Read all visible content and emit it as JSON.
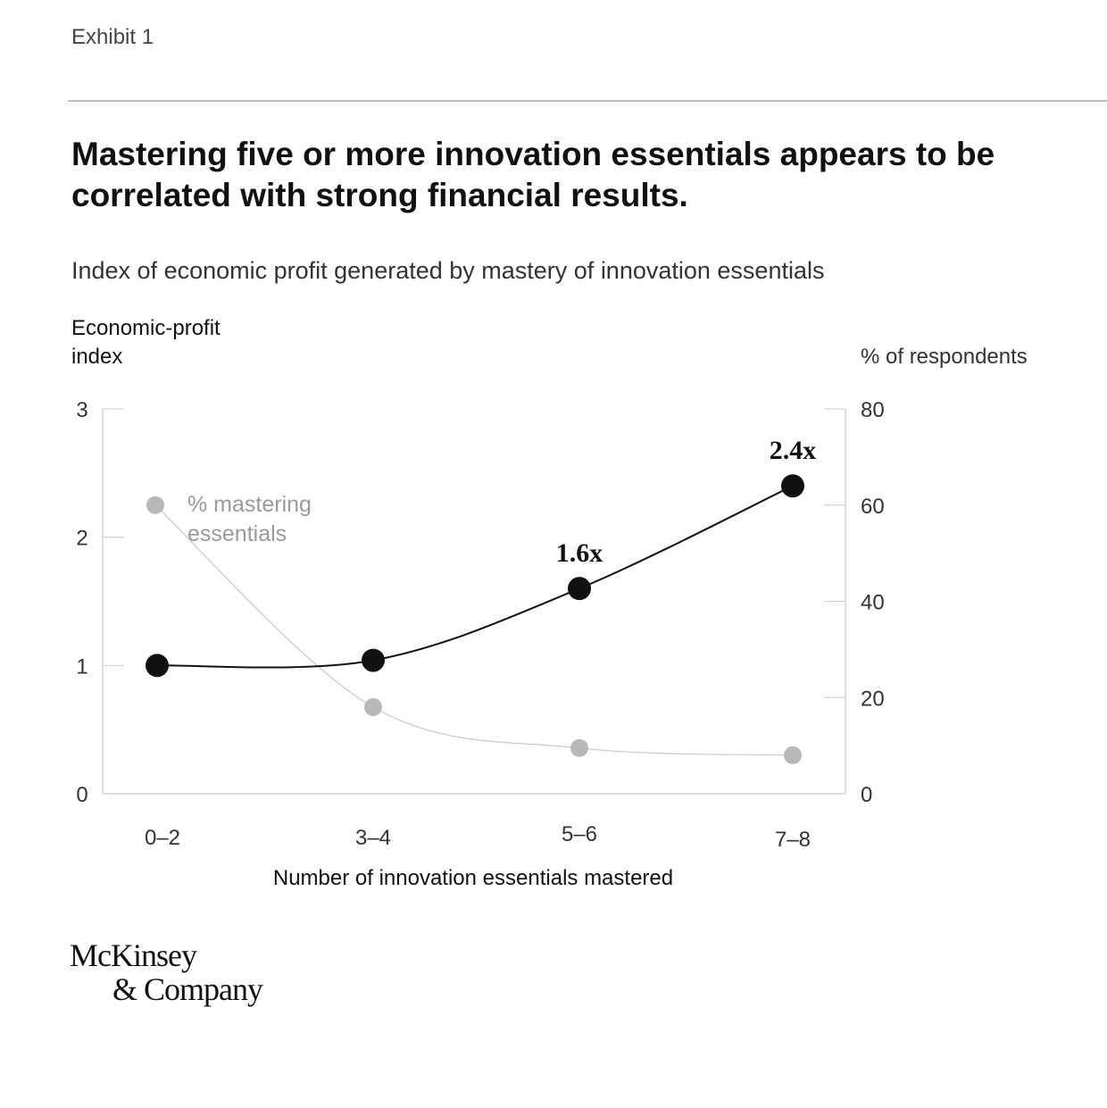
{
  "header": {
    "exhibit": "Exhibit 1",
    "title": "Mastering five or more innovation essentials appears to be correlated with strong financial results.",
    "subtitle": "Index of economic profit generated by mastery of innovation essentials"
  },
  "logo": {
    "line1": "McKinsey",
    "line2": "& Company"
  },
  "chart_data": {
    "type": "line",
    "categories": [
      "0–2",
      "3–4",
      "5–6",
      "7–8"
    ],
    "xlabel": "Number of innovation essentials mastered",
    "ylabel_left": "Economic-profit index",
    "ylabel_right": "% of respondents",
    "y_left": {
      "lim": [
        0,
        3
      ],
      "ticks": [
        "0",
        "1",
        "2",
        "3"
      ]
    },
    "y_right": {
      "lim": [
        0,
        80
      ],
      "ticks": [
        "0",
        "20",
        "40",
        "60",
        "80"
      ]
    },
    "series": [
      {
        "name": "Economic-profit index",
        "axis": "left",
        "values": [
          1.0,
          1.04,
          1.6,
          2.4
        ],
        "labels": [
          "",
          "",
          "1.6x",
          "2.4x"
        ],
        "color": "#111111"
      },
      {
        "name": "% mastering essentials",
        "axis": "right",
        "values": [
          60,
          18,
          9.5,
          8
        ],
        "color": "#b8b8b8"
      }
    ]
  }
}
